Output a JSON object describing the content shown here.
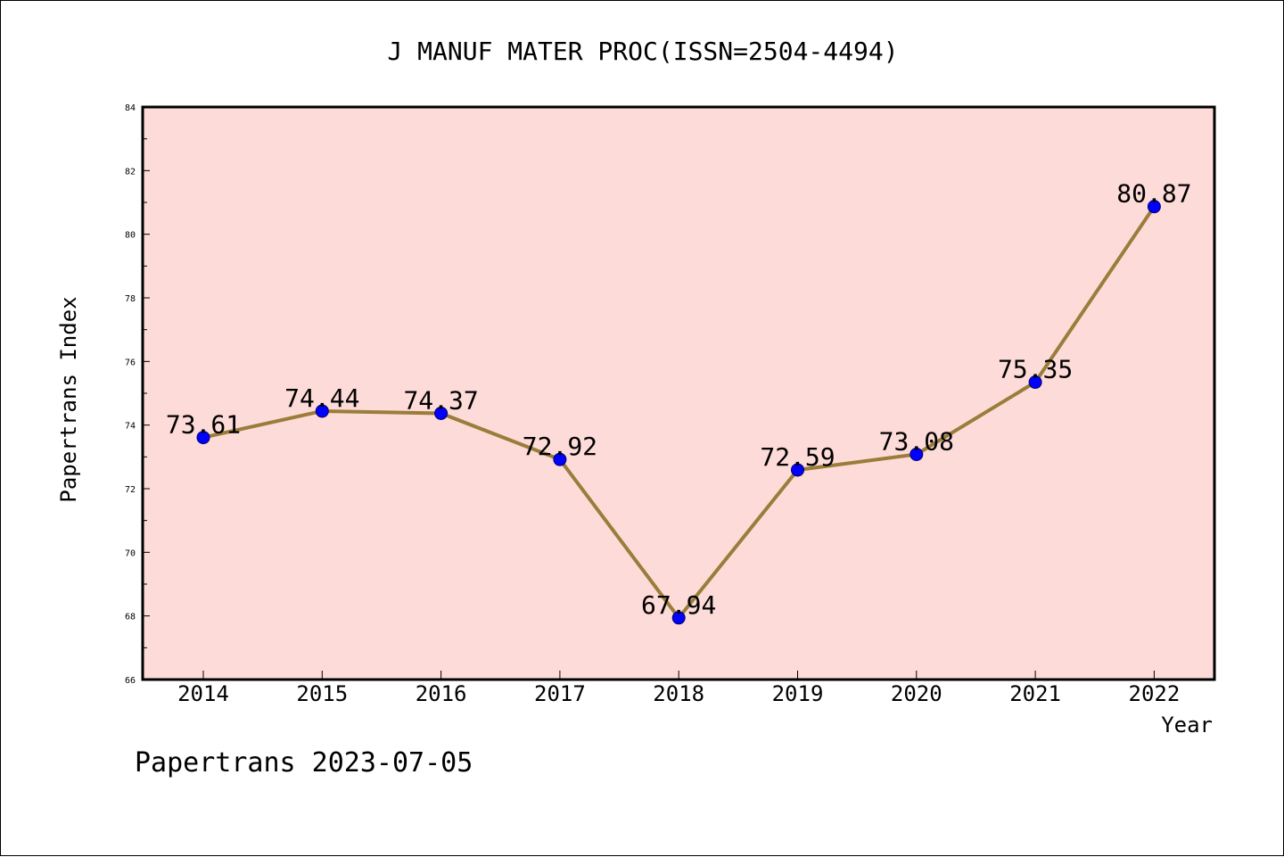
{
  "chart_data": {
    "type": "line",
    "title": "J MANUF MATER PROC(ISSN=2504-4494)",
    "xlabel": "Year",
    "ylabel": "Papertrans Index",
    "categories": [
      "2014",
      "2015",
      "2016",
      "2017",
      "2018",
      "2019",
      "2020",
      "2021",
      "2022"
    ],
    "values": [
      73.61,
      74.44,
      74.37,
      72.92,
      67.94,
      72.59,
      73.08,
      75.35,
      80.87
    ],
    "data_labels": [
      "73.61",
      "74.44",
      "74.37",
      "72.92",
      "67.94",
      "72.59",
      "73.08",
      "75.35",
      "80.87"
    ],
    "ylim": [
      66,
      84
    ],
    "yticks": [
      "66",
      "68",
      "70",
      "72",
      "74",
      "76",
      "78",
      "80",
      "82",
      "84"
    ],
    "grid": false,
    "legend": "none",
    "footer": "Papertrans 2023-07-05",
    "colors": {
      "plot_background": "#fddbd8",
      "line": "#9a7d3a",
      "marker": "#0000ff"
    }
  }
}
